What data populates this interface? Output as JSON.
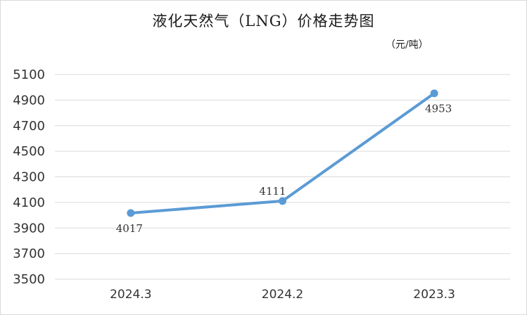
{
  "chart_data": {
    "type": "line",
    "title": "液化天然气（LNG）价格走势图",
    "unit_label": "（元/吨）",
    "categories": [
      "2024.3",
      "2024.2",
      "2023.3"
    ],
    "series": [
      {
        "values": [
          4017,
          4111,
          4953
        ],
        "data_labels": [
          "4017",
          "4111",
          "4953"
        ]
      }
    ],
    "y_ticks": [
      "3500",
      "3700",
      "3900",
      "4100",
      "4300",
      "4500",
      "4700",
      "4900",
      "5100"
    ],
    "ylim": [
      3500,
      5100
    ],
    "grid": true,
    "legend": "none",
    "line_color": "#5b9bd5",
    "grid_color": "#d9d9d9"
  }
}
